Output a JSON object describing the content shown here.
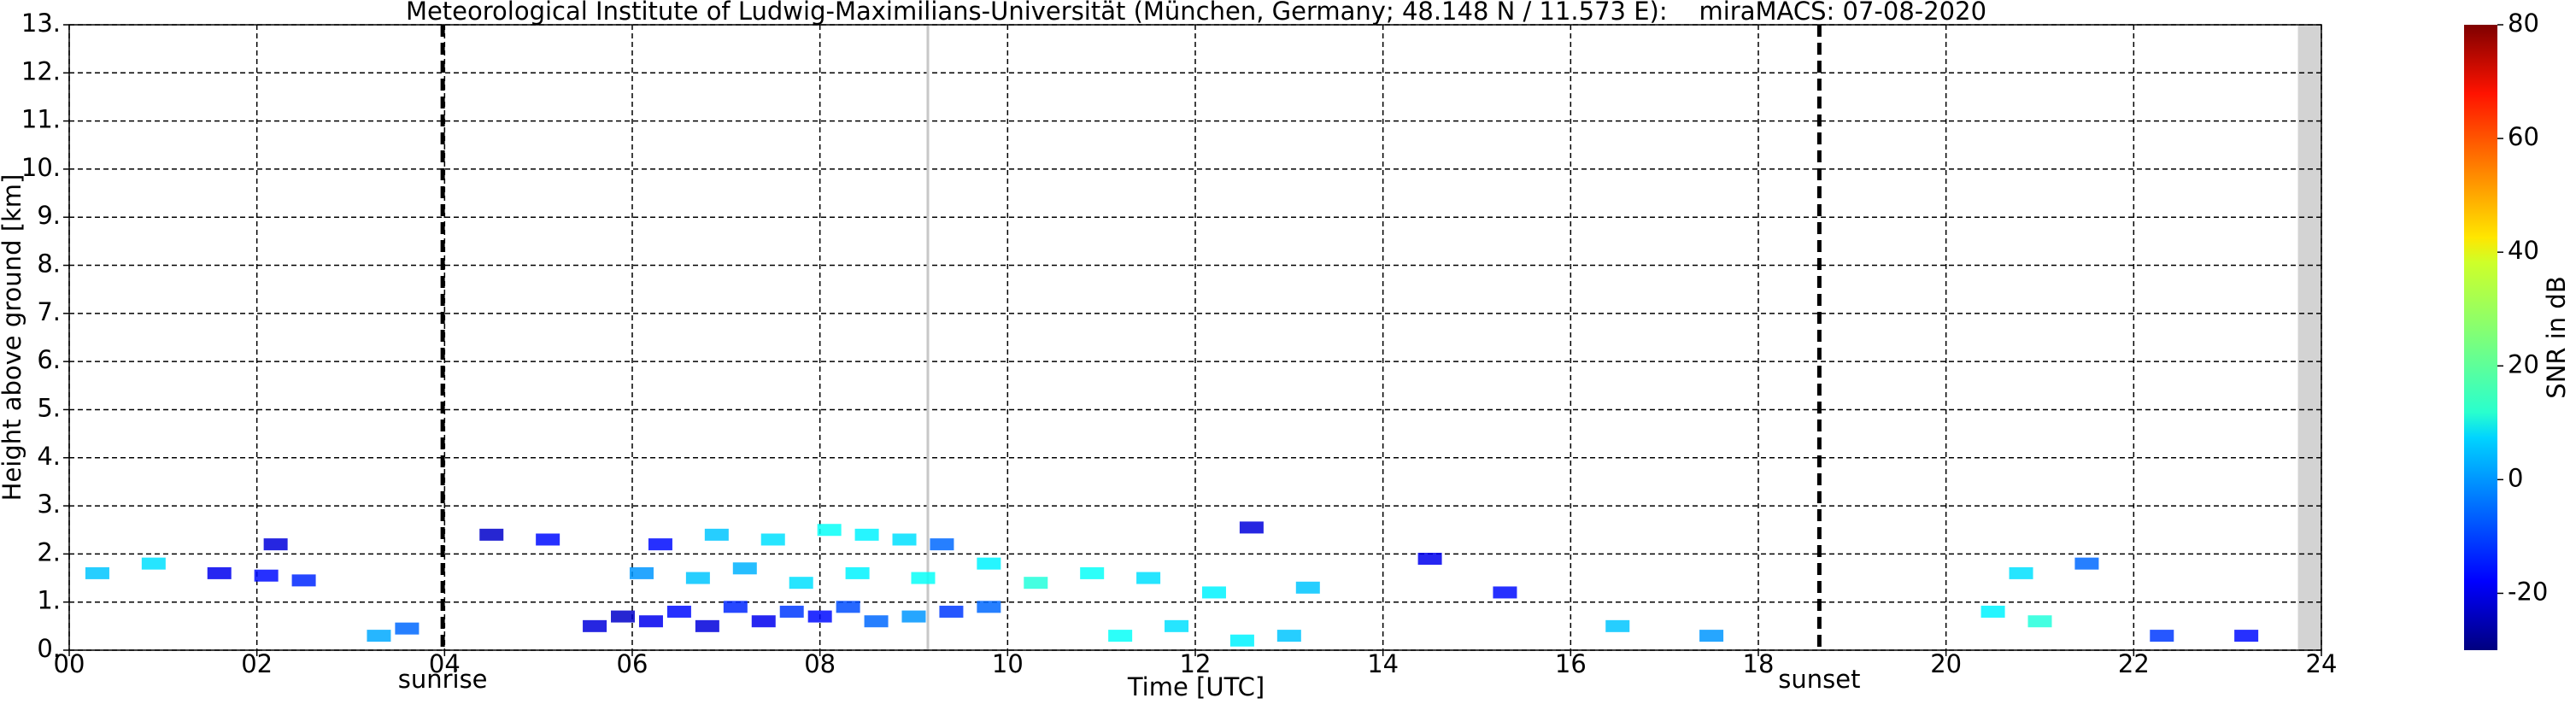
{
  "chart_data": {
    "type": "scatter",
    "title": "Meteorological Institute of Ludwig-Maximilians-Universität (München, Germany; 48.148 N / 11.573 E):    miraMACS: 07-08-2020",
    "x_label": "Time [UTC]",
    "y_label": "Height above ground [km]",
    "xlim": [
      0,
      24
    ],
    "xticks": [
      {
        "value": 0,
        "label": "00"
      },
      {
        "value": 2,
        "label": "02"
      },
      {
        "value": 4,
        "label": "04"
      },
      {
        "value": 6,
        "label": "06"
      },
      {
        "value": 8,
        "label": "08"
      },
      10,
      12,
      14,
      16,
      18,
      20,
      22,
      24
    ],
    "ylim": [
      0,
      13
    ],
    "yticks": [
      {
        "value": 0,
        "label": "0."
      },
      {
        "value": 1,
        "label": "1."
      },
      {
        "value": 2,
        "label": "2."
      },
      {
        "value": 3,
        "label": "3."
      },
      {
        "value": 4,
        "label": "4."
      },
      {
        "value": 5,
        "label": "5."
      },
      {
        "value": 6,
        "label": "6."
      },
      {
        "value": 7,
        "label": "7."
      },
      {
        "value": 8,
        "label": "8."
      },
      {
        "value": 9,
        "label": "9."
      },
      {
        "value": 10,
        "label": "10."
      },
      {
        "value": 11,
        "label": "11."
      },
      {
        "value": 12,
        "label": "12."
      },
      {
        "value": 13,
        "label": "13."
      }
    ],
    "grid": true,
    "annotations": [
      {
        "label": "sunrise",
        "x": 3.98
      },
      {
        "label": "sunset",
        "x": 18.65
      }
    ],
    "reference_line_x": 9.15,
    "no_data_from_x": 23.75,
    "colorbar": {
      "label": "SNR in dB",
      "clim": [
        -30,
        80
      ],
      "ticks": [
        -20,
        0,
        20,
        40,
        60,
        80
      ],
      "colormap": "jet"
    },
    "series": [
      {
        "x": [
          0.3,
          0.9,
          1.6,
          2.1,
          2.5,
          2.2,
          3.3,
          3.6,
          4.5,
          5.1,
          5.6,
          5.9,
          6.2,
          6.5,
          6.8,
          7.1,
          7.4,
          7.7,
          8.0,
          8.3,
          8.6,
          9.0,
          9.4,
          9.8,
          6.3,
          6.9,
          7.5,
          8.1,
          8.5,
          8.9,
          9.3,
          6.1,
          6.7,
          7.2,
          7.8,
          8.4,
          9.1,
          9.8,
          10.3,
          10.9,
          11.5,
          12.2,
          12.6,
          13.2,
          11.2,
          11.8,
          12.5,
          13.0,
          14.5,
          15.3,
          16.5,
          17.5,
          20.5,
          21.0,
          21.5,
          22.3,
          23.2,
          20.8
        ],
        "y": [
          1.6,
          1.8,
          1.6,
          1.55,
          1.45,
          2.2,
          0.3,
          0.45,
          2.4,
          2.3,
          0.5,
          0.7,
          0.6,
          0.8,
          0.5,
          0.9,
          0.6,
          0.8,
          0.7,
          0.9,
          0.6,
          0.7,
          0.8,
          0.9,
          2.2,
          2.4,
          2.3,
          2.5,
          2.4,
          2.3,
          2.2,
          1.6,
          1.5,
          1.7,
          1.4,
          1.6,
          1.5,
          1.8,
          1.4,
          1.6,
          1.5,
          1.2,
          2.55,
          1.3,
          0.3,
          0.5,
          0.2,
          0.3,
          1.9,
          1.2,
          0.5,
          0.3,
          0.8,
          0.6,
          1.8,
          0.3,
          0.3,
          1.6
        ],
        "snr": [
          5,
          8,
          -18,
          -15,
          -12,
          -20,
          2,
          -5,
          -22,
          -15,
          -20,
          -22,
          -18,
          -15,
          -20,
          -12,
          -18,
          -10,
          -15,
          -8,
          -5,
          0,
          -10,
          -5,
          -15,
          5,
          8,
          12,
          10,
          8,
          -5,
          0,
          5,
          3,
          8,
          10,
          12,
          10,
          15,
          12,
          8,
          10,
          -20,
          5,
          12,
          8,
          10,
          5,
          -18,
          -15,
          5,
          0,
          10,
          15,
          -5,
          -10,
          -15,
          8
        ]
      }
    ]
  }
}
